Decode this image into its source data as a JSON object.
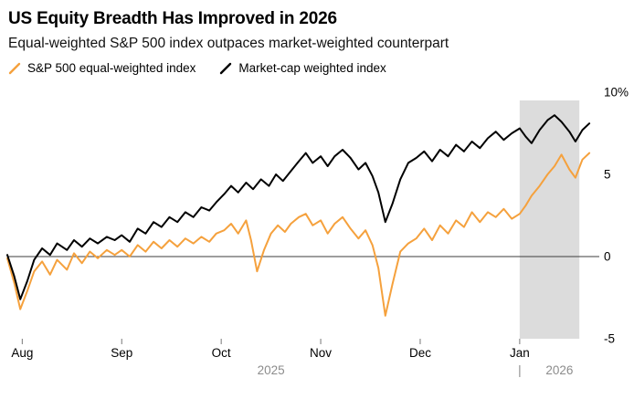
{
  "header": {
    "title": "US Equity Breadth Has Improved in 2026",
    "subtitle": "Equal-weighted S&P 500 index outpaces market-weighted counterpart"
  },
  "legend": [
    {
      "label": "S&P 500 equal-weighted index",
      "color": "#f5a13d"
    },
    {
      "label": "Market-cap weighted index",
      "color": "#000000"
    }
  ],
  "chart_data": {
    "type": "line",
    "title": "US Equity Breadth Has Improved in 2026",
    "xlabel": "",
    "ylabel": "",
    "x_unit": "months since Aug 2025 (0 = Aug, 5 = Jan)",
    "xlim": [
      -0.15,
      5.8
    ],
    "ylim": [
      -5.5,
      10.8
    ],
    "grid": false,
    "zero_line": true,
    "legend_position": "top-left",
    "y_ticks": [
      {
        "v": 10,
        "label": "10%"
      },
      {
        "v": 5,
        "label": "5"
      },
      {
        "v": 0,
        "label": "0"
      },
      {
        "v": -5,
        "label": "-5"
      }
    ],
    "x_ticks": [
      {
        "m": 0,
        "label": "Aug"
      },
      {
        "m": 1,
        "label": "Sep"
      },
      {
        "m": 2,
        "label": "Oct"
      },
      {
        "m": 3,
        "label": "Nov"
      },
      {
        "m": 4,
        "label": "Dec"
      },
      {
        "m": 5,
        "label": "Jan"
      }
    ],
    "year_labels": [
      {
        "label": "2025",
        "span": [
          0,
          5
        ]
      },
      {
        "label": "2026",
        "span": [
          5,
          5.8
        ]
      }
    ],
    "year_divider": "|",
    "year_label_color": "#8c8c8c",
    "highlight_region": {
      "from": 5.0,
      "to": 5.6,
      "color": "#dcdcdc"
    },
    "series": [
      {
        "name": "S&P 500 equal-weighted index",
        "color": "#f5a13d",
        "points": [
          [
            -0.15,
            -0.1
          ],
          [
            -0.08,
            -1.6
          ],
          [
            -0.02,
            -3.2
          ],
          [
            0.05,
            -2.1
          ],
          [
            0.12,
            -0.9
          ],
          [
            0.2,
            -0.3
          ],
          [
            0.28,
            -1.1
          ],
          [
            0.35,
            -0.2
          ],
          [
            0.45,
            -0.8
          ],
          [
            0.52,
            0.2
          ],
          [
            0.6,
            -0.4
          ],
          [
            0.68,
            0.3
          ],
          [
            0.76,
            -0.1
          ],
          [
            0.85,
            0.4
          ],
          [
            0.93,
            0.1
          ],
          [
            1.0,
            0.4
          ],
          [
            1.08,
            0.0
          ],
          [
            1.16,
            0.7
          ],
          [
            1.24,
            0.3
          ],
          [
            1.32,
            0.9
          ],
          [
            1.4,
            0.5
          ],
          [
            1.48,
            1.0
          ],
          [
            1.56,
            0.6
          ],
          [
            1.64,
            1.1
          ],
          [
            1.72,
            0.8
          ],
          [
            1.8,
            1.2
          ],
          [
            1.88,
            0.9
          ],
          [
            1.95,
            1.4
          ],
          [
            2.03,
            1.6
          ],
          [
            2.1,
            2.0
          ],
          [
            2.17,
            1.4
          ],
          [
            2.25,
            2.2
          ],
          [
            2.3,
            1.0
          ],
          [
            2.36,
            -0.9
          ],
          [
            2.43,
            0.4
          ],
          [
            2.5,
            1.4
          ],
          [
            2.57,
            1.9
          ],
          [
            2.64,
            1.5
          ],
          [
            2.7,
            2.0
          ],
          [
            2.78,
            2.4
          ],
          [
            2.85,
            2.6
          ],
          [
            2.92,
            1.9
          ],
          [
            3.0,
            2.2
          ],
          [
            3.07,
            1.4
          ],
          [
            3.14,
            2.0
          ],
          [
            3.22,
            2.4
          ],
          [
            3.3,
            1.7
          ],
          [
            3.38,
            1.1
          ],
          [
            3.45,
            1.6
          ],
          [
            3.52,
            0.7
          ],
          [
            3.58,
            -0.7
          ],
          [
            3.65,
            -3.6
          ],
          [
            3.72,
            -1.7
          ],
          [
            3.8,
            0.3
          ],
          [
            3.88,
            0.8
          ],
          [
            3.96,
            1.1
          ],
          [
            4.04,
            1.7
          ],
          [
            4.12,
            1.0
          ],
          [
            4.2,
            1.9
          ],
          [
            4.28,
            1.4
          ],
          [
            4.36,
            2.2
          ],
          [
            4.44,
            1.8
          ],
          [
            4.52,
            2.7
          ],
          [
            4.6,
            2.1
          ],
          [
            4.68,
            2.7
          ],
          [
            4.76,
            2.4
          ],
          [
            4.84,
            2.9
          ],
          [
            4.92,
            2.3
          ],
          [
            5.0,
            2.6
          ],
          [
            5.06,
            3.1
          ],
          [
            5.12,
            3.7
          ],
          [
            5.2,
            4.3
          ],
          [
            5.28,
            5.0
          ],
          [
            5.35,
            5.5
          ],
          [
            5.42,
            6.2
          ],
          [
            5.5,
            5.3
          ],
          [
            5.56,
            4.8
          ],
          [
            5.63,
            5.9
          ],
          [
            5.7,
            6.3
          ]
        ]
      },
      {
        "name": "Market-cap weighted index",
        "color": "#000000",
        "points": [
          [
            -0.15,
            0.1
          ],
          [
            -0.08,
            -1.2
          ],
          [
            -0.02,
            -2.6
          ],
          [
            0.05,
            -1.5
          ],
          [
            0.12,
            -0.2
          ],
          [
            0.2,
            0.5
          ],
          [
            0.28,
            0.1
          ],
          [
            0.35,
            0.8
          ],
          [
            0.45,
            0.4
          ],
          [
            0.52,
            1.0
          ],
          [
            0.6,
            0.6
          ],
          [
            0.68,
            1.1
          ],
          [
            0.76,
            0.8
          ],
          [
            0.85,
            1.2
          ],
          [
            0.93,
            1.0
          ],
          [
            1.0,
            1.3
          ],
          [
            1.08,
            0.9
          ],
          [
            1.16,
            1.7
          ],
          [
            1.24,
            1.4
          ],
          [
            1.32,
            2.1
          ],
          [
            1.4,
            1.8
          ],
          [
            1.48,
            2.4
          ],
          [
            1.56,
            2.1
          ],
          [
            1.64,
            2.7
          ],
          [
            1.72,
            2.4
          ],
          [
            1.8,
            3.0
          ],
          [
            1.88,
            2.8
          ],
          [
            1.95,
            3.3
          ],
          [
            2.03,
            3.8
          ],
          [
            2.1,
            4.3
          ],
          [
            2.17,
            3.9
          ],
          [
            2.25,
            4.5
          ],
          [
            2.32,
            4.1
          ],
          [
            2.4,
            4.7
          ],
          [
            2.48,
            4.3
          ],
          [
            2.55,
            5.0
          ],
          [
            2.62,
            4.6
          ],
          [
            2.7,
            5.2
          ],
          [
            2.78,
            5.8
          ],
          [
            2.85,
            6.3
          ],
          [
            2.92,
            5.7
          ],
          [
            3.0,
            6.1
          ],
          [
            3.07,
            5.5
          ],
          [
            3.14,
            6.1
          ],
          [
            3.22,
            6.5
          ],
          [
            3.3,
            6.0
          ],
          [
            3.38,
            5.3
          ],
          [
            3.45,
            5.7
          ],
          [
            3.52,
            4.9
          ],
          [
            3.58,
            3.9
          ],
          [
            3.65,
            2.1
          ],
          [
            3.72,
            3.2
          ],
          [
            3.8,
            4.7
          ],
          [
            3.88,
            5.7
          ],
          [
            3.96,
            6.0
          ],
          [
            4.04,
            6.4
          ],
          [
            4.12,
            5.8
          ],
          [
            4.2,
            6.5
          ],
          [
            4.28,
            6.1
          ],
          [
            4.36,
            6.8
          ],
          [
            4.44,
            6.4
          ],
          [
            4.52,
            7.0
          ],
          [
            4.6,
            6.6
          ],
          [
            4.68,
            7.2
          ],
          [
            4.76,
            7.6
          ],
          [
            4.84,
            7.1
          ],
          [
            4.92,
            7.5
          ],
          [
            5.0,
            7.8
          ],
          [
            5.06,
            7.3
          ],
          [
            5.12,
            6.9
          ],
          [
            5.2,
            7.7
          ],
          [
            5.28,
            8.3
          ],
          [
            5.35,
            8.6
          ],
          [
            5.42,
            8.2
          ],
          [
            5.5,
            7.6
          ],
          [
            5.56,
            7.0
          ],
          [
            5.63,
            7.7
          ],
          [
            5.7,
            8.1
          ]
        ]
      }
    ]
  }
}
